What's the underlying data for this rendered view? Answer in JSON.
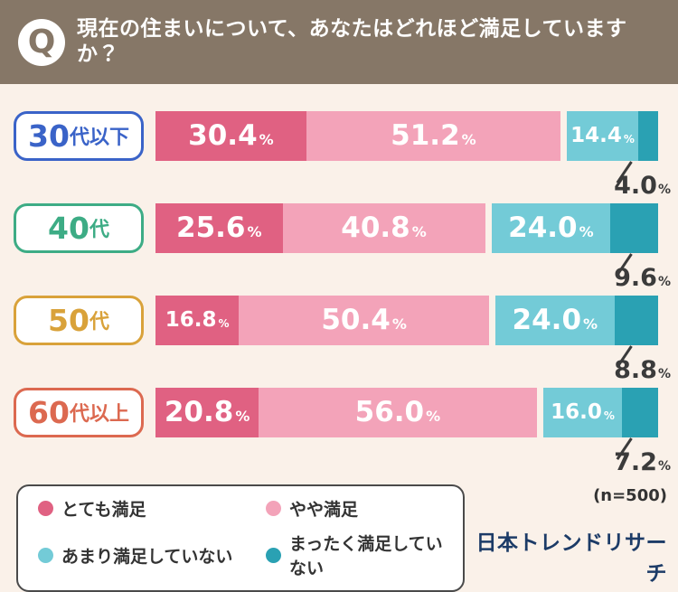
{
  "header": {
    "q_letter": "Q",
    "title": "現在の住まいについて、あなたはどれほど満足していますか？",
    "bg_color": "#867767"
  },
  "chart_data": {
    "type": "bar",
    "stacked": true,
    "orientation": "horizontal",
    "unit": "%",
    "value_range": [
      0,
      100
    ],
    "grid": false,
    "categories": [
      {
        "label": "30代以下",
        "num": "30",
        "suffix": "代以下",
        "color": "#3a63c8"
      },
      {
        "label": "40代",
        "num": "40",
        "suffix": "代",
        "color": "#3dac85"
      },
      {
        "label": "50代",
        "num": "50",
        "suffix": "代",
        "color": "#d9a23a"
      },
      {
        "label": "60代以上",
        "num": "60",
        "suffix": "代以上",
        "color": "#dc6950"
      }
    ],
    "series": [
      {
        "name": "とても満足",
        "color": "#e06182",
        "values": [
          30.4,
          25.6,
          16.8,
          20.8
        ]
      },
      {
        "name": "やや満足",
        "color": "#f3a3b9",
        "values": [
          51.2,
          40.8,
          50.4,
          56.0
        ]
      },
      {
        "name": "あまり満足していない",
        "color": "#73cbd7",
        "values": [
          14.4,
          24.0,
          24.0,
          16.0
        ]
      },
      {
        "name": "まったく満足していない",
        "color": "#2aa1b3",
        "values": [
          4.0,
          9.6,
          8.8,
          7.2
        ]
      }
    ],
    "legend_position": "bottom-left",
    "sample_note": "(n=500)"
  },
  "footer": {
    "n_label": "(n=500)",
    "brand": "日本トレンドリサーチ"
  },
  "colors": {
    "page_bg": "#faf1e9",
    "callout_text": "#3b3b3b",
    "brand_navy": "#1c3b67"
  }
}
